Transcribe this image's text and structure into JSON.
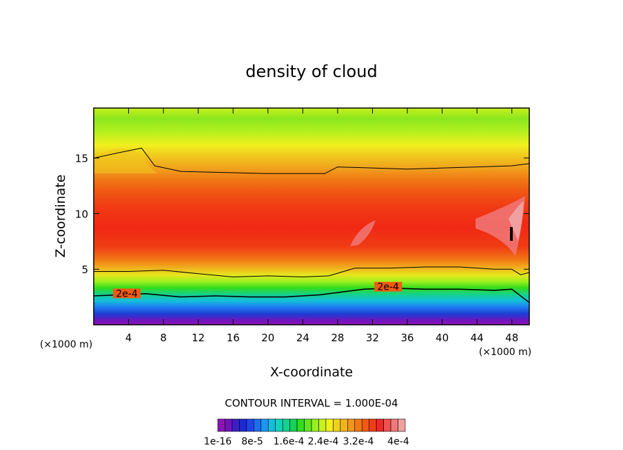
{
  "chart_data": {
    "type": "heatmap",
    "title": "density of cloud",
    "xlabel": "X-coordinate",
    "ylabel": "Z-coordinate",
    "x_unit_left": "(×1000 m)",
    "x_unit_right": "(×1000 m)",
    "xlim": [
      0,
      50
    ],
    "ylim": [
      0,
      19.5
    ],
    "x_ticks": [
      4,
      8,
      12,
      16,
      20,
      24,
      28,
      32,
      36,
      40,
      44,
      48
    ],
    "y_ticks": [
      5,
      10,
      15
    ],
    "contour_interval_label": "CONTOUR INTERVAL = 1.000E-04",
    "contour_labels": [
      {
        "text": "2e-4",
        "x": 3.8,
        "z": 2.7
      },
      {
        "text": "2e-4",
        "x": 33.8,
        "z": 3.3
      }
    ],
    "isolines": [
      {
        "level": "upper",
        "x": [
          0,
          3,
          5.5,
          7,
          10,
          20,
          26.5,
          28,
          36,
          44,
          48,
          50
        ],
        "z": [
          15,
          15.5,
          15.9,
          14.3,
          13.8,
          13.6,
          13.6,
          14.2,
          14.0,
          14.2,
          14.3,
          14.5
        ]
      },
      {
        "level": "lower",
        "x": [
          0,
          4,
          8,
          12,
          16,
          20,
          24,
          27,
          30,
          34,
          38,
          42,
          46,
          48,
          49,
          50
        ],
        "z": [
          4.8,
          4.8,
          4.9,
          4.6,
          4.3,
          4.4,
          4.3,
          4.4,
          5.1,
          5.1,
          5.2,
          5.2,
          5.0,
          5.0,
          4.5,
          4.7
        ]
      },
      {
        "level": "2e-4",
        "x": [
          0,
          3,
          6,
          10,
          14,
          18,
          22,
          26,
          28,
          31,
          34,
          38,
          42,
          46,
          48,
          50
        ],
        "z": [
          2.6,
          2.7,
          2.8,
          2.5,
          2.6,
          2.5,
          2.5,
          2.7,
          2.9,
          3.2,
          3.3,
          3.2,
          3.2,
          3.1,
          3.2,
          2.0
        ]
      }
    ],
    "colorbar": {
      "labels": [
        "1e-16",
        "8e-5",
        "1.6e-4",
        "2.4e-4",
        "3.2e-4",
        "4e-4"
      ],
      "colors": [
        "#8c14b4",
        "#6e14be",
        "#3c1ec8",
        "#1e28d2",
        "#1e46e6",
        "#1e6ef0",
        "#1e96f0",
        "#14bedc",
        "#14d2be",
        "#14d28c",
        "#14d25a",
        "#32dc1e",
        "#64e61e",
        "#96f01e",
        "#c8f01e",
        "#f0f01e",
        "#f0d21e",
        "#f0b41e",
        "#f0961e",
        "#f07814",
        "#f05a14",
        "#f03c14",
        "#f02828",
        "#f05050",
        "#f07878",
        "#f0a0a0"
      ]
    }
  }
}
